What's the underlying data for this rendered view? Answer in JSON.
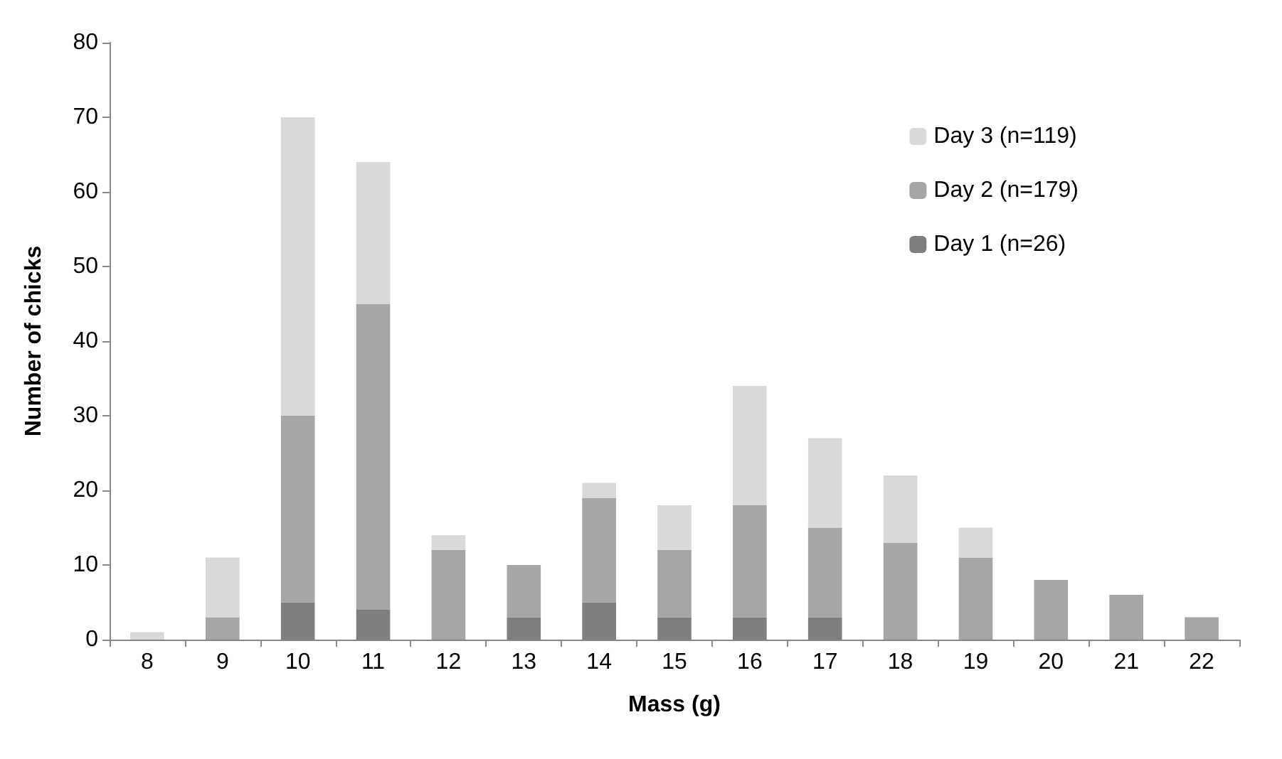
{
  "chart_data": {
    "type": "bar",
    "xlabel": "Mass (g)",
    "ylabel": "Number of chicks",
    "categories": [
      "8",
      "9",
      "10",
      "11",
      "12",
      "13",
      "14",
      "15",
      "16",
      "17",
      "18",
      "19",
      "20",
      "21",
      "22"
    ],
    "stacked": true,
    "series": [
      {
        "name": "Day 1 (n=26)",
        "color": "#7f7f7f",
        "values": [
          0,
          0,
          5,
          4,
          0,
          3,
          5,
          3,
          3,
          3,
          0,
          0,
          0,
          0,
          0
        ]
      },
      {
        "name": "Day 2 (n=179)",
        "color": "#a6a6a6",
        "values": [
          0,
          3,
          25,
          41,
          12,
          7,
          14,
          9,
          15,
          12,
          13,
          11,
          8,
          6,
          3
        ]
      },
      {
        "name": "Day 3 (n=119)",
        "color": "#d9d9d9",
        "values": [
          1,
          8,
          40,
          19,
          2,
          0,
          2,
          6,
          16,
          12,
          9,
          4,
          0,
          0,
          0
        ]
      }
    ],
    "ylim": [
      0,
      80
    ],
    "yticks": [
      0,
      10,
      20,
      30,
      40,
      50,
      60,
      70,
      80
    ],
    "grid": false,
    "legend": "top right"
  }
}
